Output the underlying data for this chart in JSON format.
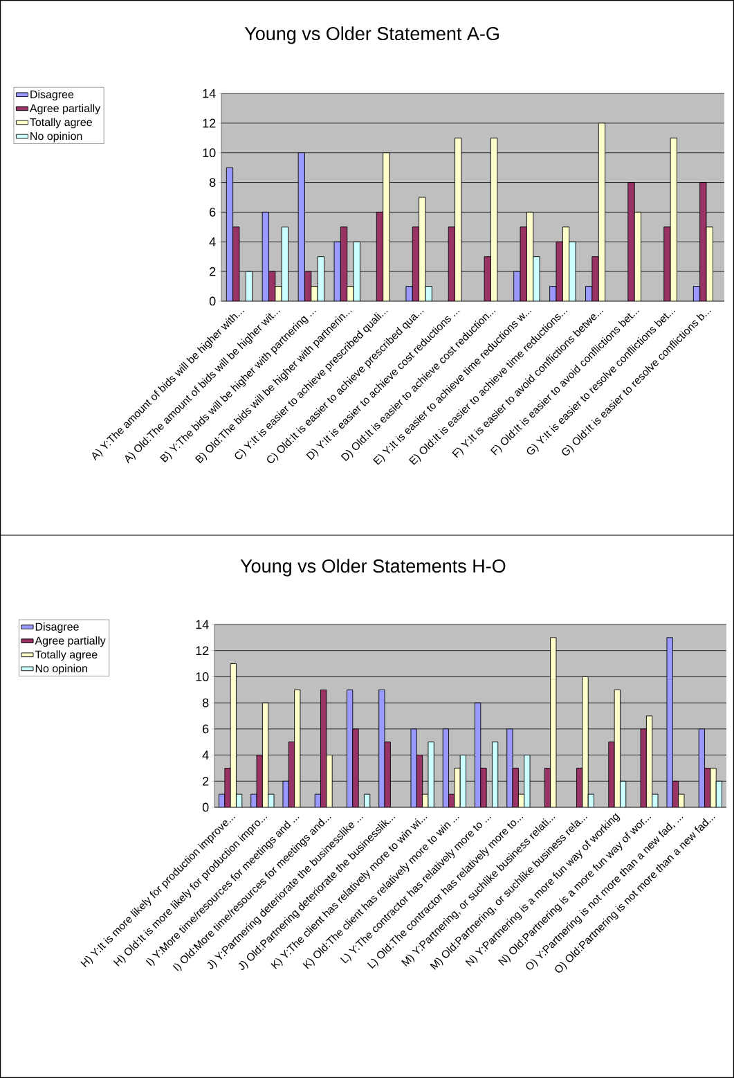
{
  "chart_data": [
    {
      "type": "bar",
      "title": "Young vs Older Statement A-G",
      "categories": [
        "A) Y:The amount of bids will be higher with...",
        "A) Old:The amount of bids will be higher wit...",
        "B) Y:The bids will be higher with partnering ...",
        "B) Old:The bids will be higher with partnerin...",
        "C) Y:It is easier to achieve prescribed quali...",
        "C) Old:It is easier to achieve prescribed qua...",
        "D) Y:It is easier to achieve cost reductions ...",
        "D) Old:It is easier to achieve cost reduction...",
        "E) Y:It is easier to achieve time reductions w...",
        "E) Old:It is easier to achieve time reductions...",
        "F) Y:It is easier to avoid conflictions betwe...",
        "F) Old:It is easier to avoid conflictions bet...",
        "G) Y:It is easier to resolve conflictions bet...",
        "G) Old:It is easier to resolve conflictions b..."
      ],
      "series": [
        {
          "name": "Disagree",
          "color": "#9999ff",
          "values": [
            9,
            6,
            10,
            4,
            null,
            1,
            null,
            null,
            2,
            1,
            1,
            null,
            null,
            1
          ]
        },
        {
          "name": "Agree partially",
          "color": "#993366",
          "values": [
            5,
            2,
            2,
            5,
            6,
            5,
            5,
            3,
            5,
            4,
            3,
            8,
            5,
            8
          ]
        },
        {
          "name": "Totally agree",
          "color": "#ffffcc",
          "values": [
            null,
            1,
            1,
            1,
            10,
            7,
            11,
            11,
            6,
            5,
            12,
            6,
            11,
            5
          ]
        },
        {
          "name": "No opinion",
          "color": "#ccffff",
          "values": [
            2,
            5,
            3,
            4,
            null,
            1,
            null,
            null,
            3,
            4,
            null,
            null,
            null,
            null
          ]
        }
      ],
      "ylim": [
        0,
        14
      ],
      "yticks": [
        0,
        2,
        4,
        6,
        8,
        10,
        12,
        14
      ],
      "grid": "y",
      "legend": "top left"
    },
    {
      "type": "bar",
      "title": "Young vs Older Statements H-O",
      "categories": [
        "H) Y:It is more likely for production improve...",
        "H) Old:It is more likely for production impro...",
        "I) Y:More time/resources for meetings and ...",
        "I) Old:More time/resources for meetings and...",
        "J) Y:Partnering deteriorate the businesslike ...",
        "J) Old:Partnering deteriorate the businesslik...",
        "K) Y:The client has relatively more to win wi...",
        "K) Old:The client has relatively more to win ...",
        "L) Y:The contractor has relatively more to ...",
        "L) Old:The contractor has relatively more to...",
        "M) Y:Partnering, or suchlike business relati...",
        "M) Old:Partnering, or suchlike business rela...",
        "N) Y:Partnering is a more fun way of working",
        "N) Old:Partnering is a more fun way of wor...",
        "O) Y:Partnering is not more than a new fad, ...",
        "O) Old:Partnering is not more than a new fad..."
      ],
      "series": [
        {
          "name": "Disagree",
          "color": "#9999ff",
          "values": [
            1,
            1,
            2,
            1,
            9,
            9,
            6,
            6,
            8,
            6,
            null,
            null,
            null,
            null,
            13,
            6
          ]
        },
        {
          "name": "Agree partially",
          "color": "#993366",
          "values": [
            3,
            4,
            5,
            9,
            6,
            5,
            4,
            1,
            3,
            3,
            3,
            3,
            5,
            6,
            2,
            3
          ]
        },
        {
          "name": "Totally agree",
          "color": "#ffffcc",
          "values": [
            11,
            8,
            9,
            4,
            null,
            null,
            1,
            3,
            null,
            1,
            13,
            10,
            9,
            7,
            1,
            3
          ]
        },
        {
          "name": "No opinion",
          "color": "#ccffff",
          "values": [
            1,
            1,
            null,
            null,
            1,
            null,
            5,
            4,
            5,
            4,
            null,
            1,
            2,
            1,
            null,
            2
          ]
        }
      ],
      "ylim": [
        0,
        14
      ],
      "yticks": [
        0,
        2,
        4,
        6,
        8,
        10,
        12,
        14
      ],
      "grid": "y",
      "legend": "top left"
    }
  ]
}
